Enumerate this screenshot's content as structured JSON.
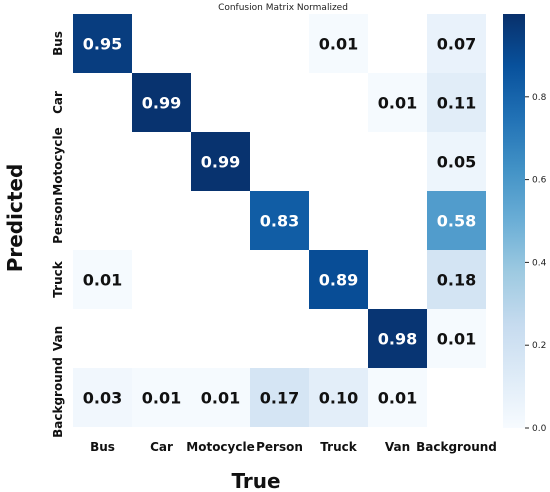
{
  "chart_data": {
    "type": "heatmap",
    "title": "Confusion Matrix Normalized",
    "xlabel": "True",
    "ylabel": "Predicted",
    "x_categories": [
      "Bus",
      "Car",
      "Motocycle",
      "Person",
      "Truck",
      "Van",
      "Background"
    ],
    "y_categories": [
      "Bus",
      "Car",
      "Motocycle",
      "Person",
      "Truck",
      "Van",
      "Background"
    ],
    "values": [
      [
        0.95,
        null,
        null,
        null,
        0.01,
        null,
        0.07
      ],
      [
        null,
        0.99,
        null,
        null,
        null,
        0.01,
        0.11
      ],
      [
        null,
        null,
        0.99,
        null,
        null,
        null,
        0.05
      ],
      [
        null,
        null,
        null,
        0.83,
        null,
        null,
        0.58
      ],
      [
        0.01,
        null,
        null,
        null,
        0.89,
        null,
        0.18
      ],
      [
        null,
        null,
        null,
        null,
        null,
        0.98,
        0.01
      ],
      [
        0.03,
        0.01,
        0.01,
        0.17,
        0.1,
        0.01,
        null
      ]
    ],
    "value_labels": [
      [
        "0.95",
        "",
        "",
        "",
        "0.01",
        "",
        "0.07"
      ],
      [
        "",
        "0.99",
        "",
        "",
        "",
        "0.01",
        "0.11"
      ],
      [
        "",
        "",
        "0.99",
        "",
        "",
        "",
        "0.05"
      ],
      [
        "",
        "",
        "",
        "0.83",
        "",
        "",
        "0.58"
      ],
      [
        "0.01",
        "",
        "",
        "",
        "0.89",
        "",
        "0.18"
      ],
      [
        "",
        "",
        "",
        "",
        "",
        "0.98",
        "0.01"
      ],
      [
        "0.03",
        "0.01",
        "0.01",
        "0.17",
        "0.10",
        "0.01",
        ""
      ]
    ],
    "colorbar": {
      "range": [
        0,
        1
      ],
      "ticks": [
        0.0,
        0.2,
        0.4,
        0.6,
        0.8
      ],
      "tick_labels": [
        "0.0",
        "0.2",
        "0.4",
        "0.6",
        "0.8"
      ],
      "colormap": "Blues"
    },
    "grid": false,
    "legend": "none"
  }
}
